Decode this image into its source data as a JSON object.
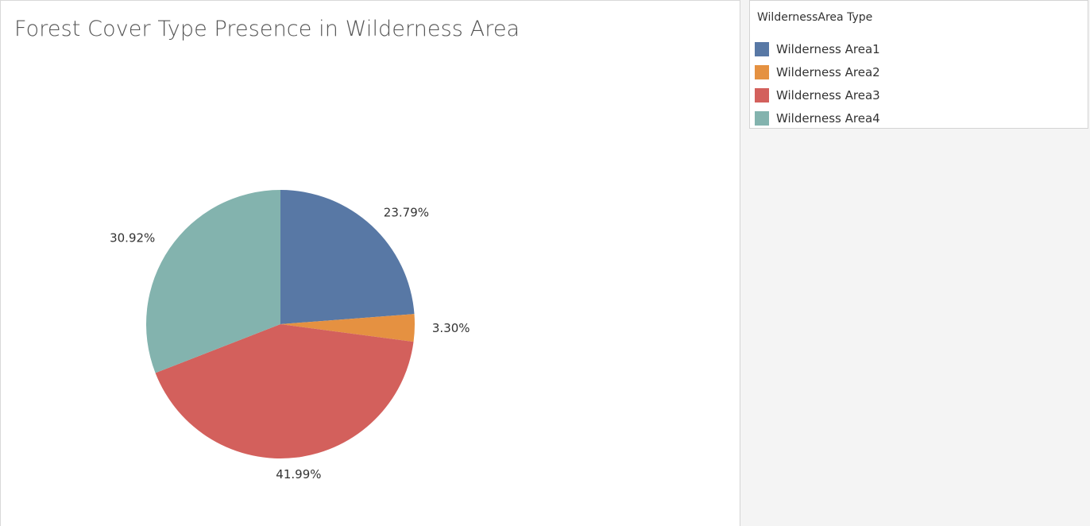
{
  "legend": {
    "title": "WildernessArea Type",
    "items": [
      {
        "label": "Wilderness Area1",
        "color": "#5878a5"
      },
      {
        "label": "Wilderness Area2",
        "color": "#e59141"
      },
      {
        "label": "Wilderness Area3",
        "color": "#d3605c"
      },
      {
        "label": "Wilderness Area4",
        "color": "#83b3ae"
      }
    ]
  },
  "chart_data": {
    "type": "pie",
    "title": "Forest Cover Type Presence in Wilderness Area",
    "legend_position": "right",
    "categories": [
      "Wilderness Area1",
      "Wilderness Area2",
      "Wilderness Area3",
      "Wilderness Area4"
    ],
    "values": [
      23.79,
      3.3,
      41.99,
      30.92
    ],
    "labels": [
      "23.79%",
      "3.30%",
      "41.99%",
      "30.92%"
    ],
    "colors": [
      "#5878a5",
      "#e59141",
      "#d3605c",
      "#83b3ae"
    ]
  }
}
